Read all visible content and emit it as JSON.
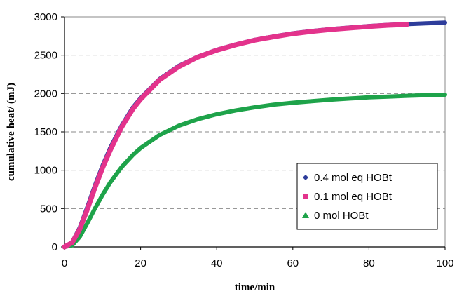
{
  "chart_data": {
    "type": "scatter",
    "title": "",
    "xlabel": "time/min",
    "ylabel": "cumulative heat/ (mJ)",
    "xlim": [
      0,
      100
    ],
    "ylim": [
      0,
      3000
    ],
    "x_ticks": [
      "0",
      "20",
      "40",
      "60",
      "80",
      "100"
    ],
    "y_ticks": [
      "0",
      "500",
      "1000",
      "1500",
      "2000",
      "2500",
      "3000"
    ],
    "grid": "horizontal dashed",
    "legend_position": "bottom-right",
    "series": [
      {
        "name": "0.4 mol eq HOBt",
        "color": "#2e3d9b",
        "marker": "diamond",
        "x": [
          0,
          2,
          4,
          6,
          8,
          10,
          12,
          15,
          18,
          20,
          25,
          30,
          35,
          40,
          45,
          50,
          55,
          60,
          65,
          70,
          75,
          80,
          85,
          90,
          95,
          100
        ],
        "y": [
          0,
          60,
          250,
          520,
          800,
          1060,
          1290,
          1580,
          1820,
          1940,
          2190,
          2360,
          2480,
          2570,
          2640,
          2700,
          2745,
          2785,
          2815,
          2840,
          2860,
          2880,
          2895,
          2905,
          2915,
          2925
        ]
      },
      {
        "name": "0.1 mol eq HOBt",
        "color": "#e3338c",
        "marker": "square",
        "x": [
          0,
          2,
          4,
          6,
          8,
          10,
          12,
          15,
          18,
          20,
          25,
          30,
          35,
          40,
          45,
          50,
          55,
          60,
          65,
          70,
          75,
          80,
          85,
          90
        ],
        "y": [
          0,
          55,
          230,
          490,
          770,
          1030,
          1260,
          1560,
          1800,
          1925,
          2180,
          2350,
          2475,
          2565,
          2635,
          2695,
          2740,
          2780,
          2810,
          2835,
          2855,
          2875,
          2890,
          2900
        ]
      },
      {
        "name": "0 mol HOBt",
        "color": "#1ea34a",
        "marker": "triangle",
        "x": [
          0,
          2,
          4,
          6,
          8,
          10,
          12,
          15,
          18,
          20,
          25,
          30,
          35,
          40,
          45,
          50,
          55,
          60,
          65,
          70,
          75,
          80,
          85,
          90,
          95,
          100
        ],
        "y": [
          0,
          20,
          130,
          310,
          500,
          680,
          840,
          1040,
          1200,
          1290,
          1460,
          1580,
          1665,
          1730,
          1780,
          1820,
          1855,
          1880,
          1900,
          1920,
          1935,
          1950,
          1960,
          1970,
          1978,
          1985
        ]
      }
    ]
  }
}
